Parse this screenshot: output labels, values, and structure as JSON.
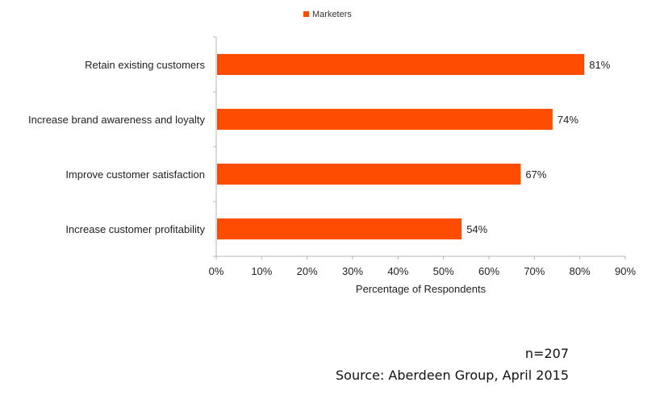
{
  "chart_data": {
    "type": "bar",
    "orientation": "horizontal",
    "categories": [
      "Retain existing customers",
      "Increase brand awareness and loyalty",
      "Improve customer satisfaction",
      "Increase customer profitability"
    ],
    "series": [
      {
        "name": "Marketers",
        "values": [
          81,
          74,
          67,
          54
        ]
      }
    ],
    "value_labels": [
      "81%",
      "74%",
      "67%",
      "54%"
    ],
    "xlabel": "Percentage of Respondents",
    "xlim": [
      0,
      90
    ],
    "xticks": [
      "0%",
      "10%",
      "20%",
      "30%",
      "40%",
      "50%",
      "60%",
      "70%",
      "80%",
      "90%"
    ],
    "grid": false,
    "legend_position": "top",
    "bar_color": "#ff4d00"
  },
  "footer": {
    "sample_size": "n=207",
    "source": "Source: Aberdeen Group, April 2015"
  }
}
